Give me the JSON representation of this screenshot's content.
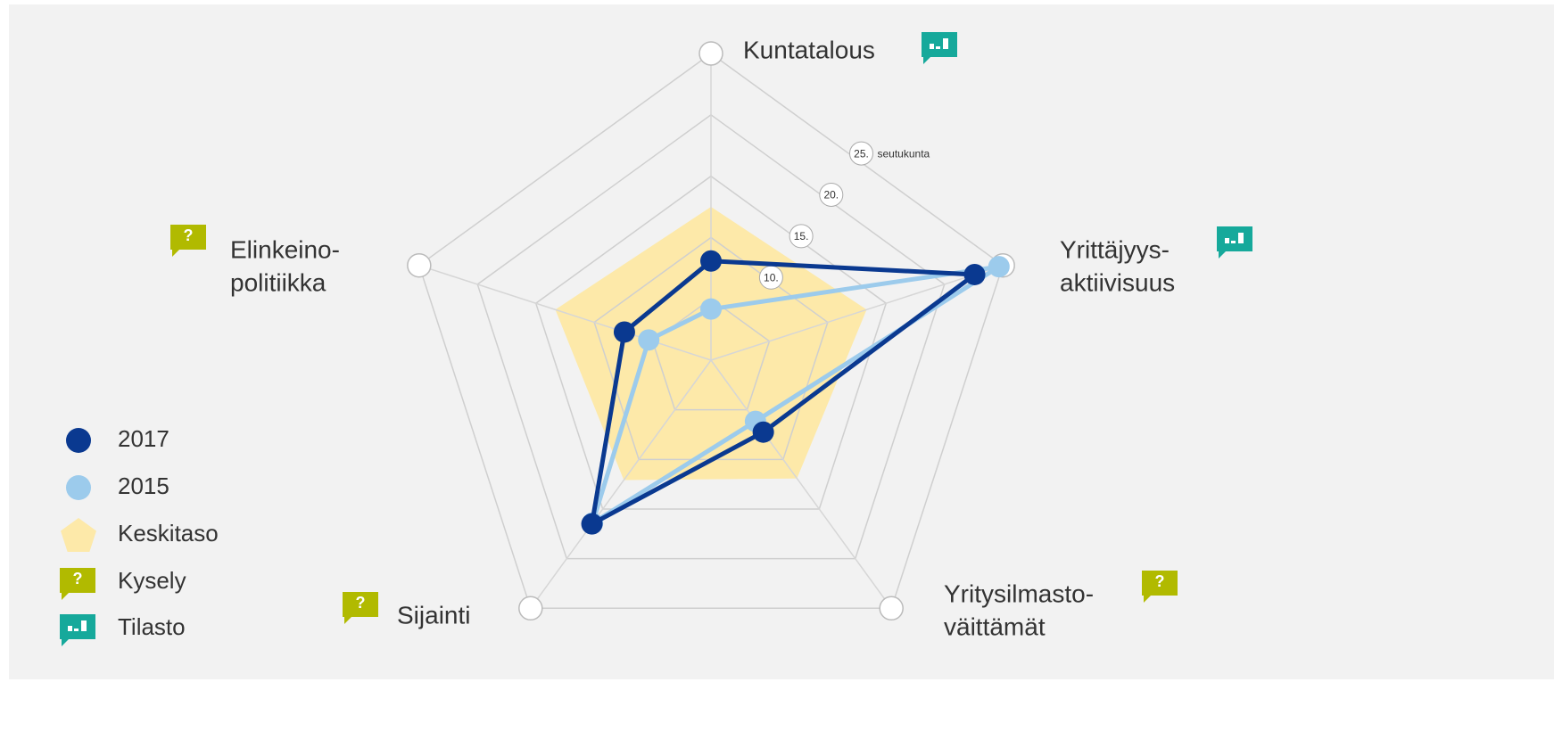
{
  "chart_data": {
    "type": "radar",
    "categories": [
      [
        "Kuntatalous"
      ],
      [
        "Yrittäjyys-",
        "aktiivisuus"
      ],
      [
        "Yritysilmasto-",
        "väittämät"
      ],
      [
        "Sijainti"
      ],
      [
        "Elinkeino-",
        "politiikka"
      ]
    ],
    "category_icon": [
      1,
      1,
      0,
      0,
      0
    ],
    "rlim": [
      0,
      30
    ],
    "rticks": [
      {
        "value": 10,
        "label": "10."
      },
      {
        "value": 15,
        "label": "15."
      },
      {
        "value": 20,
        "label": "20."
      },
      {
        "value": 25,
        "label": "25."
      }
    ],
    "rtick_unit": "seutukunta",
    "series": [
      {
        "name": "Keskitaso",
        "color": "#fde9a9",
        "style": "area",
        "values": [
          15,
          16,
          14.3,
          14.5,
          16
        ]
      },
      {
        "name": "2015",
        "color": "#9ccbec",
        "style": "line",
        "values": [
          5.0,
          29.6,
          7.4,
          19.7,
          6.4
        ]
      },
      {
        "name": "2017",
        "color": "#0a3990",
        "style": "line",
        "values": [
          9.7,
          27.1,
          8.7,
          19.8,
          8.9
        ]
      }
    ],
    "legend_order": [
      2,
      1,
      0
    ],
    "icons": [
      {
        "name": "Kysely",
        "text": "?",
        "color": "#b1ba00"
      },
      {
        "name": "Tilasto",
        "color": "#16a99b"
      }
    ]
  }
}
